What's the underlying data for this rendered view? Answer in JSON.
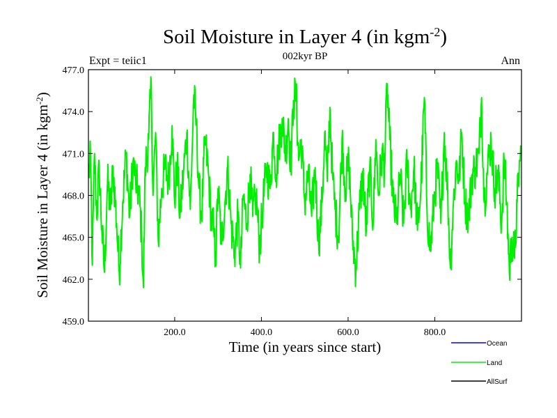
{
  "chart_data": {
    "type": "line",
    "title": "Soil Moisture in Layer 4 (in kgm",
    "title_sup": "-2",
    "title_close": ")",
    "subtitle_center": "002kyr BP",
    "subtitle_left": "Expt = teiic1",
    "subtitle_right": "Ann",
    "xlabel": "Time (in years since start)",
    "ylabel": "Soil Moisture in Layer 4 (in kgm",
    "ylabel_sup": "-2",
    "ylabel_close": ")",
    "xlim": [
      1,
      1000
    ],
    "ylim": [
      459,
      477
    ],
    "x_ticks": [
      200,
      400,
      600,
      800
    ],
    "x_tick_labels": [
      "200.0",
      "400.0",
      "600.0",
      "800.0"
    ],
    "y_ticks": [
      459,
      462,
      465,
      468,
      471,
      474,
      477
    ],
    "y_tick_labels": [
      "459.0",
      "462.0",
      "465.0",
      "468.0",
      "471.0",
      "474.0",
      "477.0"
    ],
    "grid": false,
    "legend_position": "bottom-right",
    "series": [
      {
        "name": "Ocean",
        "color": "#0000ff",
        "values": []
      },
      {
        "name": "Land",
        "color": "#00ee00",
        "anchors": [
          [
            1,
            469.5
          ],
          [
            6,
            470.5
          ],
          [
            10,
            463.0
          ],
          [
            15,
            471.0
          ],
          [
            20,
            466.5
          ],
          [
            26,
            470.0
          ],
          [
            32,
            465.5
          ],
          [
            38,
            462.5
          ],
          [
            45,
            469.0
          ],
          [
            52,
            467.0
          ],
          [
            58,
            470.0
          ],
          [
            66,
            466.0
          ],
          [
            72,
            462.5
          ],
          [
            80,
            467.5
          ],
          [
            88,
            471.0
          ],
          [
            96,
            466.5
          ],
          [
            104,
            470.5
          ],
          [
            110,
            469.0
          ],
          [
            118,
            468.0
          ],
          [
            124,
            465.0
          ],
          [
            128,
            461.4
          ],
          [
            132,
            470.0
          ],
          [
            140,
            472.0
          ],
          [
            146,
            476.0
          ],
          [
            150,
            468.0
          ],
          [
            156,
            472.5
          ],
          [
            162,
            464.8
          ],
          [
            170,
            468.5
          ],
          [
            178,
            470.0
          ],
          [
            186,
            469.0
          ],
          [
            194,
            473.0
          ],
          [
            200,
            467.5
          ],
          [
            206,
            470.5
          ],
          [
            212,
            466.5
          ],
          [
            220,
            469.5
          ],
          [
            228,
            472.5
          ],
          [
            236,
            467.0
          ],
          [
            240,
            471.0
          ],
          [
            244,
            475.2
          ],
          [
            250,
            473.0
          ],
          [
            256,
            468.5
          ],
          [
            262,
            466.5
          ],
          [
            270,
            472.0
          ],
          [
            278,
            469.5
          ],
          [
            284,
            466.5
          ],
          [
            290,
            465.5
          ],
          [
            294,
            463.3
          ],
          [
            300,
            468.5
          ],
          [
            308,
            464.5
          ],
          [
            316,
            467.5
          ],
          [
            322,
            470.0
          ],
          [
            330,
            466.0
          ],
          [
            338,
            463.8
          ],
          [
            346,
            466.5
          ],
          [
            352,
            462.8
          ],
          [
            358,
            468.0
          ],
          [
            366,
            466.0
          ],
          [
            374,
            469.5
          ],
          [
            380,
            466.5
          ],
          [
            388,
            468.0
          ],
          [
            396,
            464.2
          ],
          [
            404,
            467.5
          ],
          [
            412,
            470.0
          ],
          [
            420,
            468.5
          ],
          [
            428,
            472.5
          ],
          [
            434,
            469.5
          ],
          [
            440,
            471.5
          ],
          [
            448,
            473.5
          ],
          [
            456,
            471.0
          ],
          [
            462,
            473.5
          ],
          [
            468,
            470.0
          ],
          [
            474,
            474.8
          ],
          [
            480,
            475.3
          ],
          [
            486,
            470.5
          ],
          [
            492,
            472.0
          ],
          [
            500,
            467.5
          ],
          [
            508,
            469.5
          ],
          [
            516,
            466.5
          ],
          [
            524,
            470.0
          ],
          [
            532,
            464.5
          ],
          [
            540,
            467.5
          ],
          [
            546,
            472.5
          ],
          [
            552,
            469.0
          ],
          [
            558,
            474.3
          ],
          [
            564,
            469.5
          ],
          [
            570,
            467.0
          ],
          [
            578,
            465.0
          ],
          [
            586,
            472.0
          ],
          [
            594,
            468.5
          ],
          [
            602,
            470.5
          ],
          [
            610,
            465.0
          ],
          [
            618,
            462.7
          ],
          [
            626,
            467.0
          ],
          [
            634,
            469.5
          ],
          [
            642,
            465.5
          ],
          [
            650,
            470.0
          ],
          [
            658,
            466.0
          ],
          [
            664,
            472.0
          ],
          [
            670,
            468.0
          ],
          [
            678,
            471.0
          ],
          [
            684,
            470.0
          ],
          [
            690,
            476.0
          ],
          [
            696,
            472.0
          ],
          [
            704,
            467.5
          ],
          [
            712,
            466.0
          ],
          [
            720,
            469.5
          ],
          [
            728,
            466.0
          ],
          [
            736,
            470.5
          ],
          [
            744,
            467.0
          ],
          [
            752,
            470.0
          ],
          [
            760,
            465.5
          ],
          [
            768,
            468.5
          ],
          [
            776,
            475.0
          ],
          [
            782,
            467.0
          ],
          [
            790,
            464.0
          ],
          [
            798,
            467.5
          ],
          [
            806,
            470.0
          ],
          [
            814,
            466.0
          ],
          [
            822,
            472.5
          ],
          [
            830,
            468.0
          ],
          [
            836,
            462.8
          ],
          [
            842,
            467.0
          ],
          [
            850,
            470.5
          ],
          [
            856,
            469.0
          ],
          [
            862,
            472.5
          ],
          [
            870,
            467.5
          ],
          [
            878,
            466.5
          ],
          [
            886,
            469.5
          ],
          [
            894,
            470.0
          ],
          [
            902,
            471.0
          ],
          [
            908,
            475.0
          ],
          [
            914,
            467.5
          ],
          [
            922,
            470.0
          ],
          [
            930,
            472.0
          ],
          [
            938,
            468.5
          ],
          [
            946,
            469.5
          ],
          [
            954,
            466.0
          ],
          [
            960,
            470.5
          ],
          [
            966,
            467.5
          ],
          [
            972,
            462.5
          ],
          [
            978,
            465.0
          ],
          [
            984,
            463.5
          ],
          [
            990,
            467.5
          ],
          [
            996,
            470.5
          ],
          [
            1000,
            471.0
          ]
        ]
      },
      {
        "name": "AllSurf",
        "color": "#000000",
        "values": []
      }
    ]
  }
}
